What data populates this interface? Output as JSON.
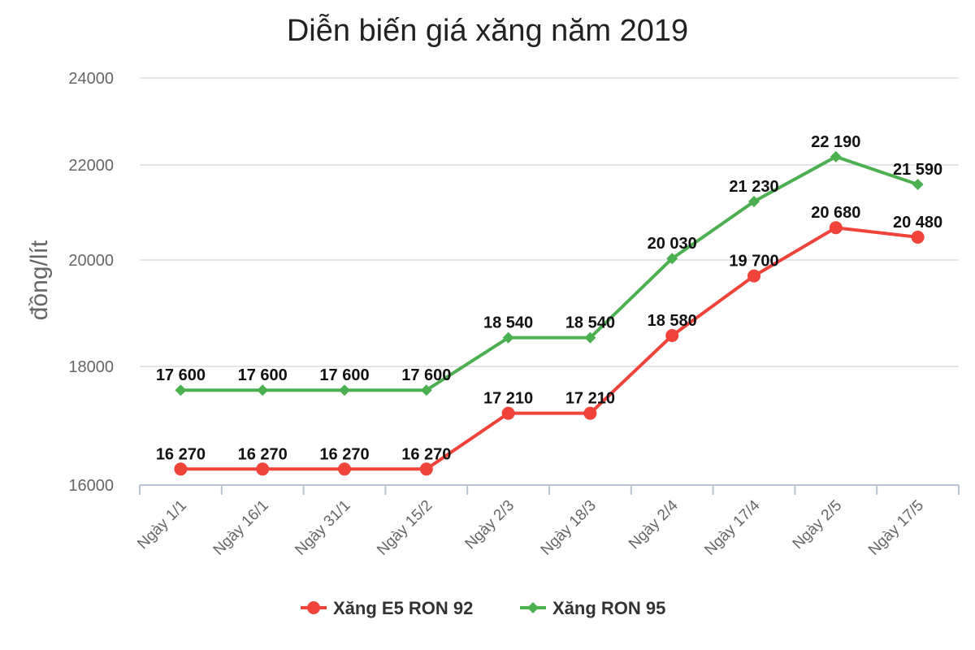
{
  "chart_data": {
    "type": "line",
    "title": "Diễn biến giá xăng năm 2019",
    "xlabel": "",
    "ylabel": "đồng/lít",
    "ylim": [
      16000,
      24000
    ],
    "yticks": [
      "16000",
      "18000",
      "20000",
      "22000",
      "24000"
    ],
    "categories": [
      "Ngày 1/1",
      "Ngày 16/1",
      "Ngày 31/1",
      "Ngày 15/2",
      "Ngày 2/3",
      "Ngày 18/3",
      "Ngày 2/4",
      "Ngày 17/4",
      "Ngày 2/5",
      "Ngày 17/5"
    ],
    "grid": true,
    "legend_position": "bottom",
    "series": [
      {
        "name": "Xăng E5 RON 92",
        "color": "#f0433a",
        "marker": "circle",
        "values": [
          16270,
          16270,
          16270,
          16270,
          17210,
          17210,
          18580,
          19700,
          20680,
          20480
        ],
        "labels": [
          "16 270",
          "16 270",
          "16 270",
          "16 270",
          "17 210",
          "17 210",
          "18 580",
          "19 700",
          "20 680",
          "20 480"
        ]
      },
      {
        "name": "Xăng RON 95",
        "color": "#4caf50",
        "marker": "diamond",
        "values": [
          17600,
          17600,
          17600,
          17600,
          18540,
          18540,
          20030,
          21230,
          22190,
          21590
        ],
        "labels": [
          "17 600",
          "17 600",
          "17 600",
          "17 600",
          "18 540",
          "18 540",
          "20 030",
          "21 230",
          "22 190",
          "21 590"
        ]
      }
    ]
  }
}
